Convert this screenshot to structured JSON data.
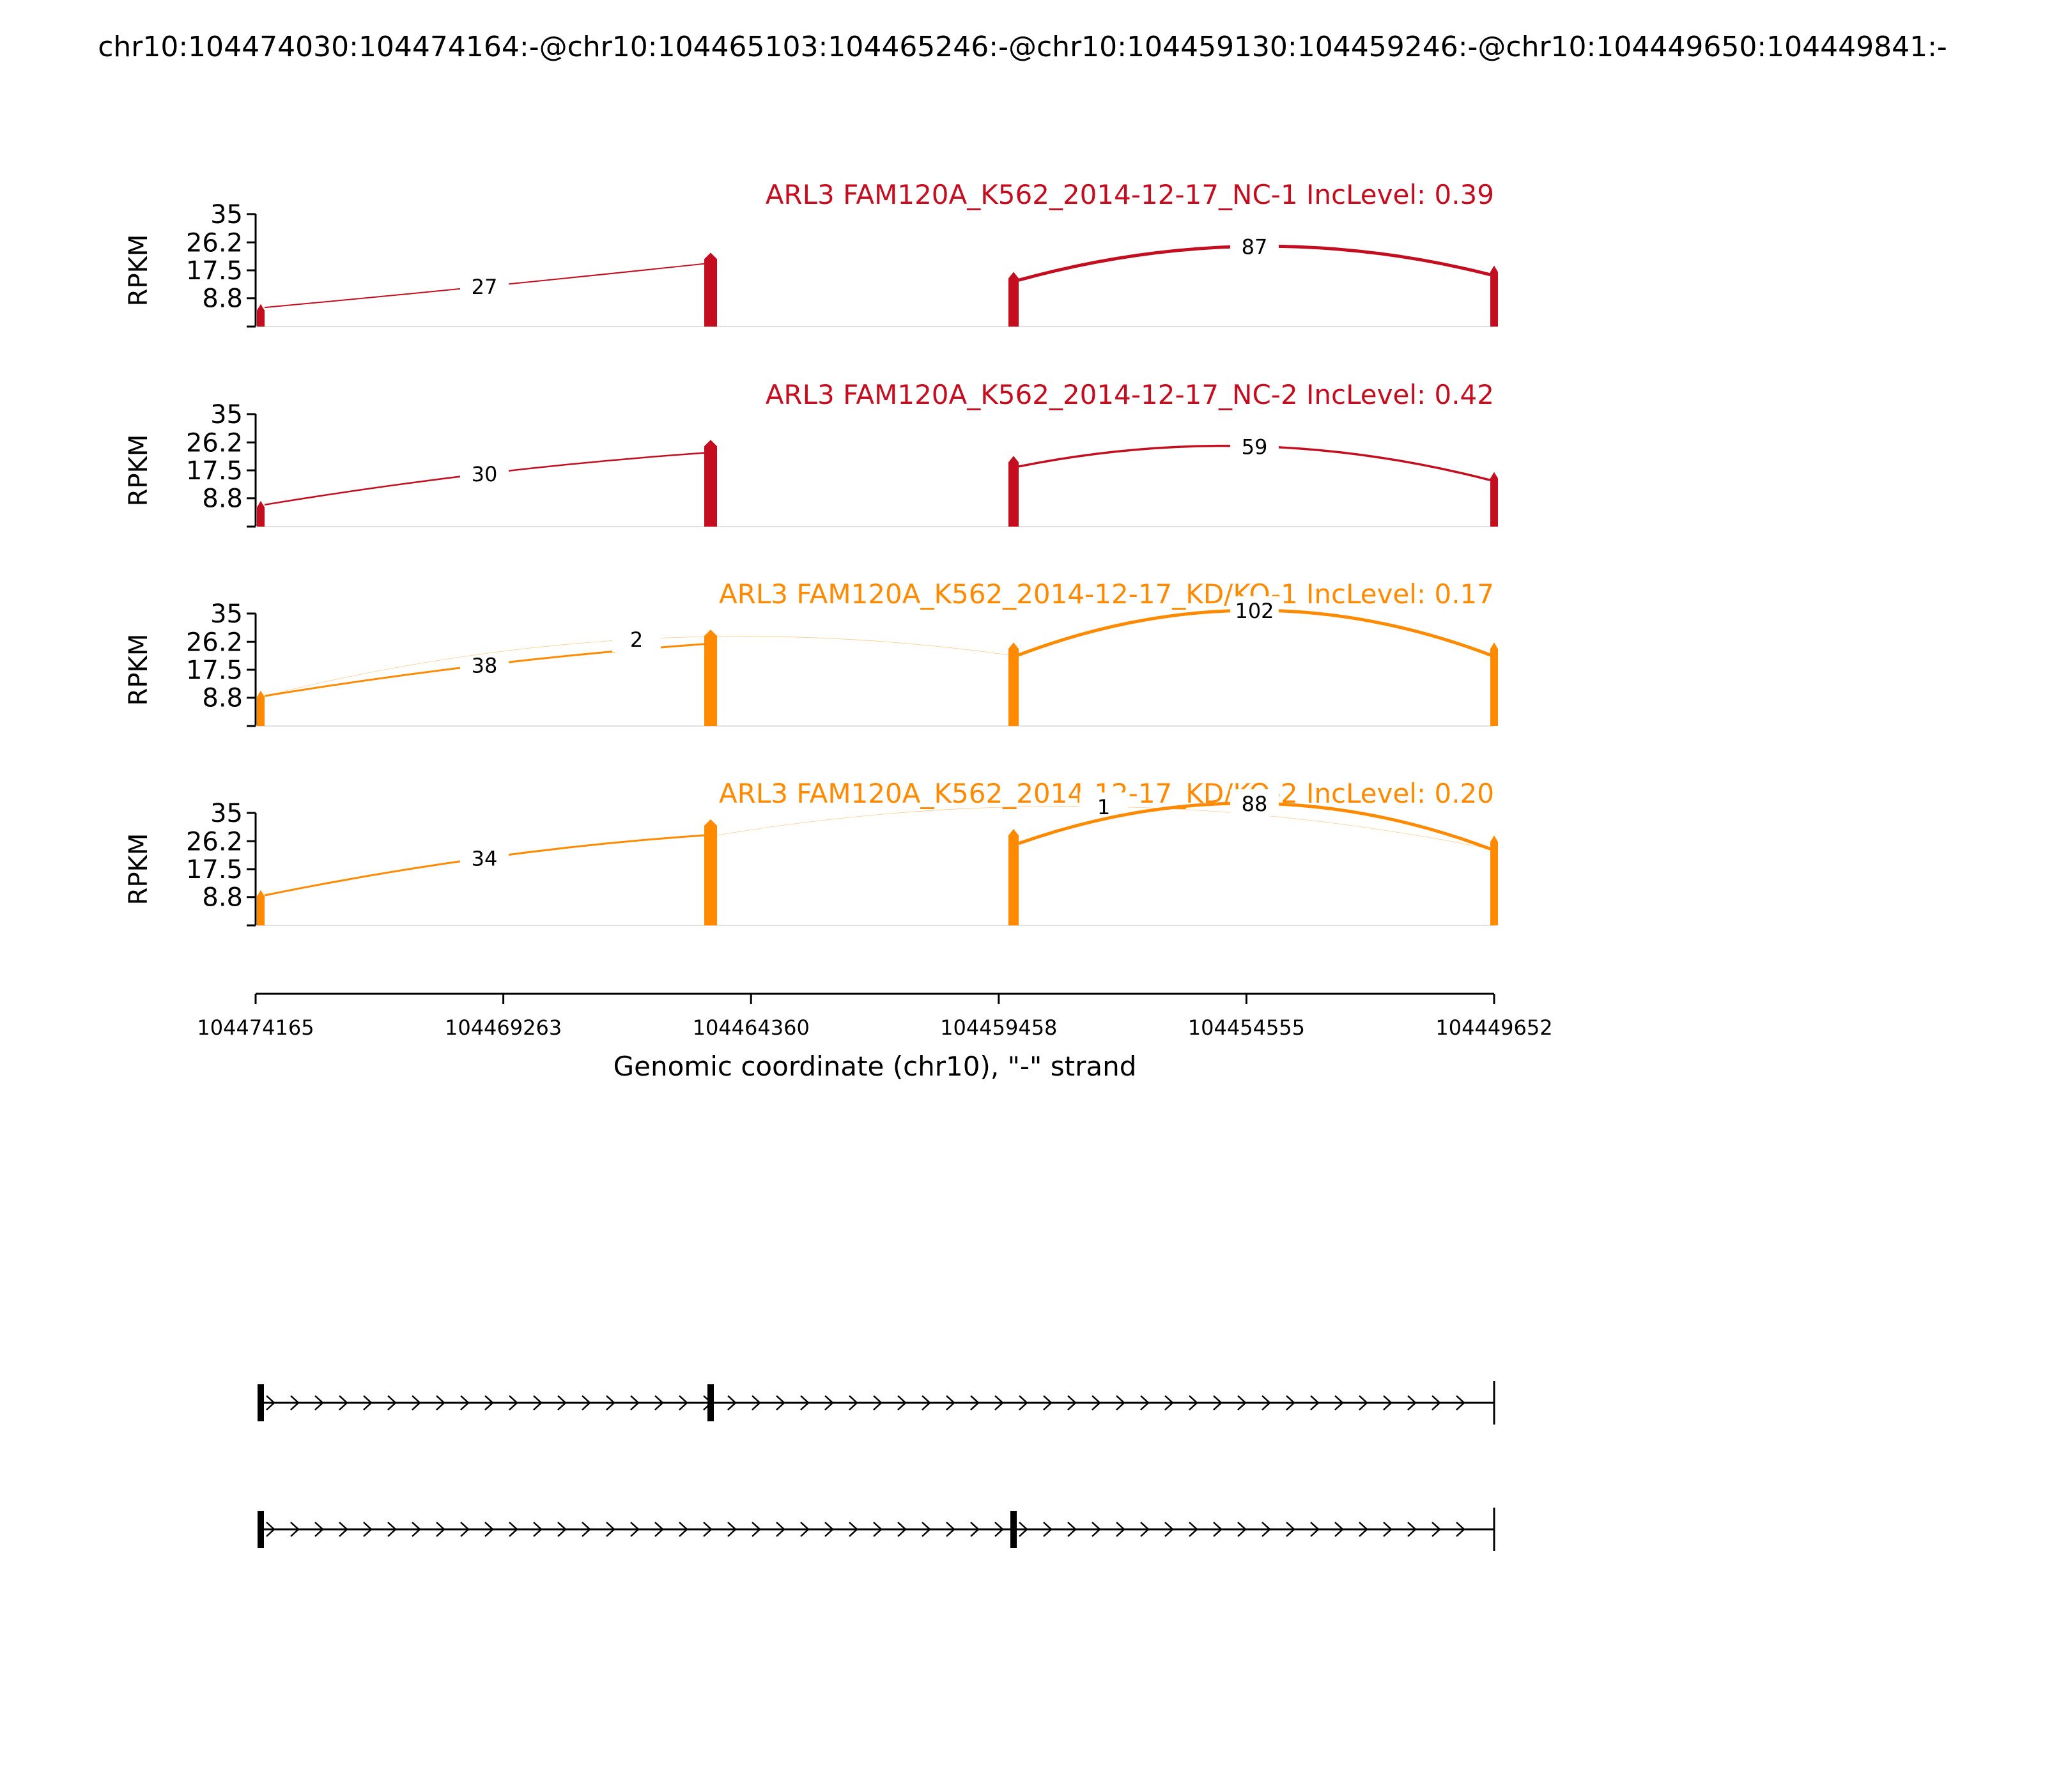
{
  "title": "chr10:104474030:104474164:-@chr10:104465103:104465246:-@chr10:104459130:104459246:-@chr10:104449650:104449841:-",
  "chart_data": {
    "type": "sashimi",
    "ylabel": "RPKM",
    "yticks": [
      8.8,
      17.5,
      26.2,
      35
    ],
    "ylim": [
      0,
      35
    ],
    "xlabel": "Genomic coordinate (chr10), \"-\" strand",
    "x_ticks": [
      "104474165",
      "104469263",
      "104464360",
      "104459458",
      "104454555",
      "104449652"
    ],
    "panels": [
      {
        "title": "ARL3 FAM120A_K562_2014-12-17_NC-1 IncLevel: 0.39",
        "color": "#c40d1f",
        "exon_peaks": [
          7,
          23,
          17,
          19
        ],
        "junctions": [
          {
            "label": "27",
            "from": 1,
            "to": 2,
            "height": 12.5,
            "weight": 2
          },
          {
            "label": "87",
            "from": 3,
            "to": 4,
            "height": 25.0,
            "weight": 5
          }
        ]
      },
      {
        "title": "ARL3 FAM120A_K562_2014-12-17_NC-2 IncLevel: 0.42",
        "color": "#c40d1f",
        "exon_peaks": [
          8,
          27,
          22,
          17
        ],
        "junctions": [
          {
            "label": "30",
            "from": 1,
            "to": 2,
            "height": 16.5,
            "weight": 2.5
          },
          {
            "label": "59",
            "from": 3,
            "to": 4,
            "height": 25.0,
            "weight": 3.5
          }
        ]
      },
      {
        "title": "ARL3 FAM120A_K562_2014-12-17_KD/KO-1 IncLevel: 0.17",
        "color": "#ff8a00",
        "exon_peaks": [
          11,
          30,
          26,
          26
        ],
        "junctions": [
          {
            "label": "38",
            "from": 1,
            "to": 2,
            "height": 19.0,
            "weight": 3
          },
          {
            "label": "2",
            "from": 1,
            "to": 3,
            "height": 27.0,
            "weight": 0.8
          },
          {
            "label": "102",
            "from": 3,
            "to": 4,
            "height": 36.0,
            "weight": 5
          }
        ]
      },
      {
        "title": "ARL3 FAM120A_K562_2014-12-17_KD/KO-2 IncLevel: 0.20",
        "color": "#ff8a00",
        "exon_peaks": [
          11,
          33,
          30,
          28
        ],
        "junctions": [
          {
            "label": "34",
            "from": 1,
            "to": 2,
            "height": 21.0,
            "weight": 3
          },
          {
            "label": "1",
            "from": 2,
            "to": 4,
            "height": 37.0,
            "weight": 0.8
          },
          {
            "label": "88",
            "from": 3,
            "to": 4,
            "height": 38.0,
            "weight": 5
          }
        ]
      }
    ],
    "isoforms": [
      {
        "exons": [
          1,
          2,
          4
        ]
      },
      {
        "exons": [
          1,
          3,
          4
        ]
      }
    ]
  }
}
